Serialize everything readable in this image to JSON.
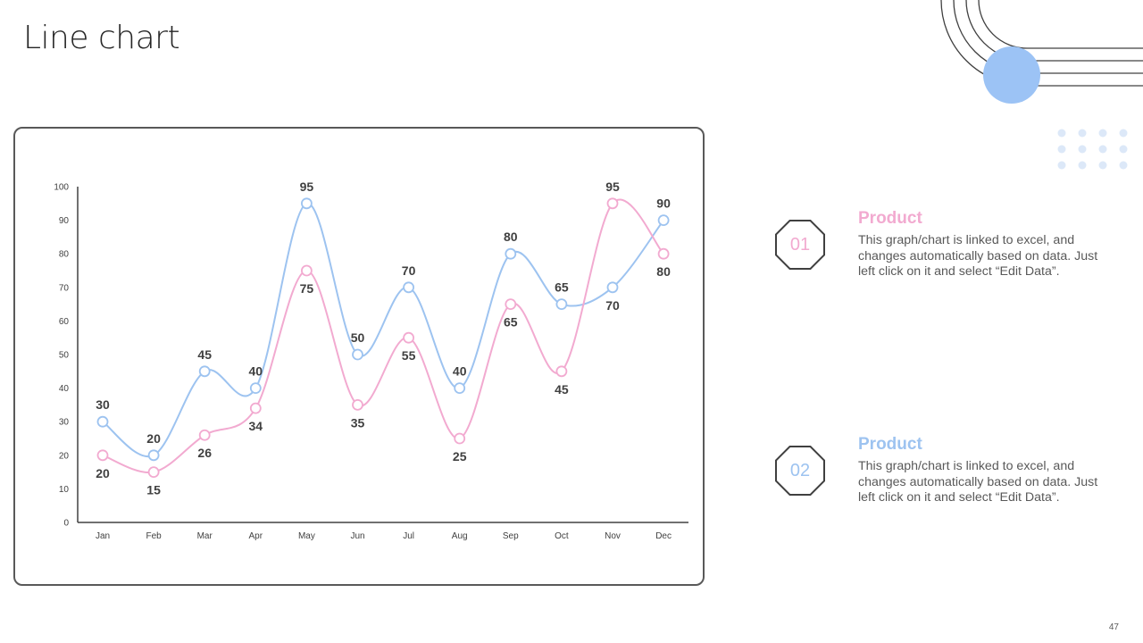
{
  "page": {
    "title": "Line chart",
    "page_number": "47"
  },
  "colors": {
    "blue": "#9dc3f0",
    "pink": "#f2aad0",
    "circle": "#9cc3f5",
    "dots": "#dce8f8",
    "frame": "#595959"
  },
  "chart_data": {
    "type": "line",
    "categories": [
      "Jan",
      "Feb",
      "Mar",
      "Apr",
      "May",
      "Jun",
      "Jul",
      "Aug",
      "Sep",
      "Oct",
      "Nov",
      "Dec"
    ],
    "series": [
      {
        "name": "Product 02",
        "color": "#9dc3f0",
        "values": [
          30,
          20,
          45,
          40,
          95,
          50,
          70,
          40,
          80,
          65,
          70,
          90
        ]
      },
      {
        "name": "Product 01",
        "color": "#f2aad0",
        "values": [
          20,
          15,
          26,
          34,
          75,
          35,
          55,
          25,
          65,
          45,
          95,
          80
        ]
      }
    ],
    "ylim": [
      0,
      100
    ],
    "yticks": [
      0,
      10,
      20,
      30,
      40,
      50,
      60,
      70,
      80,
      90,
      100
    ],
    "title": "",
    "xlabel": "",
    "ylabel": "",
    "grid": false
  },
  "legend": [
    {
      "number": "01",
      "title": "Product",
      "color": "#f2aad0",
      "description": "This graph/chart is linked to excel, and changes automatically based on data. Just left click on it and select “Edit Data”."
    },
    {
      "number": "02",
      "title": "Product",
      "color": "#9dc3f0",
      "description": "This graph/chart is linked to excel, and changes automatically based on data. Just left click on it and select “Edit Data”."
    }
  ]
}
